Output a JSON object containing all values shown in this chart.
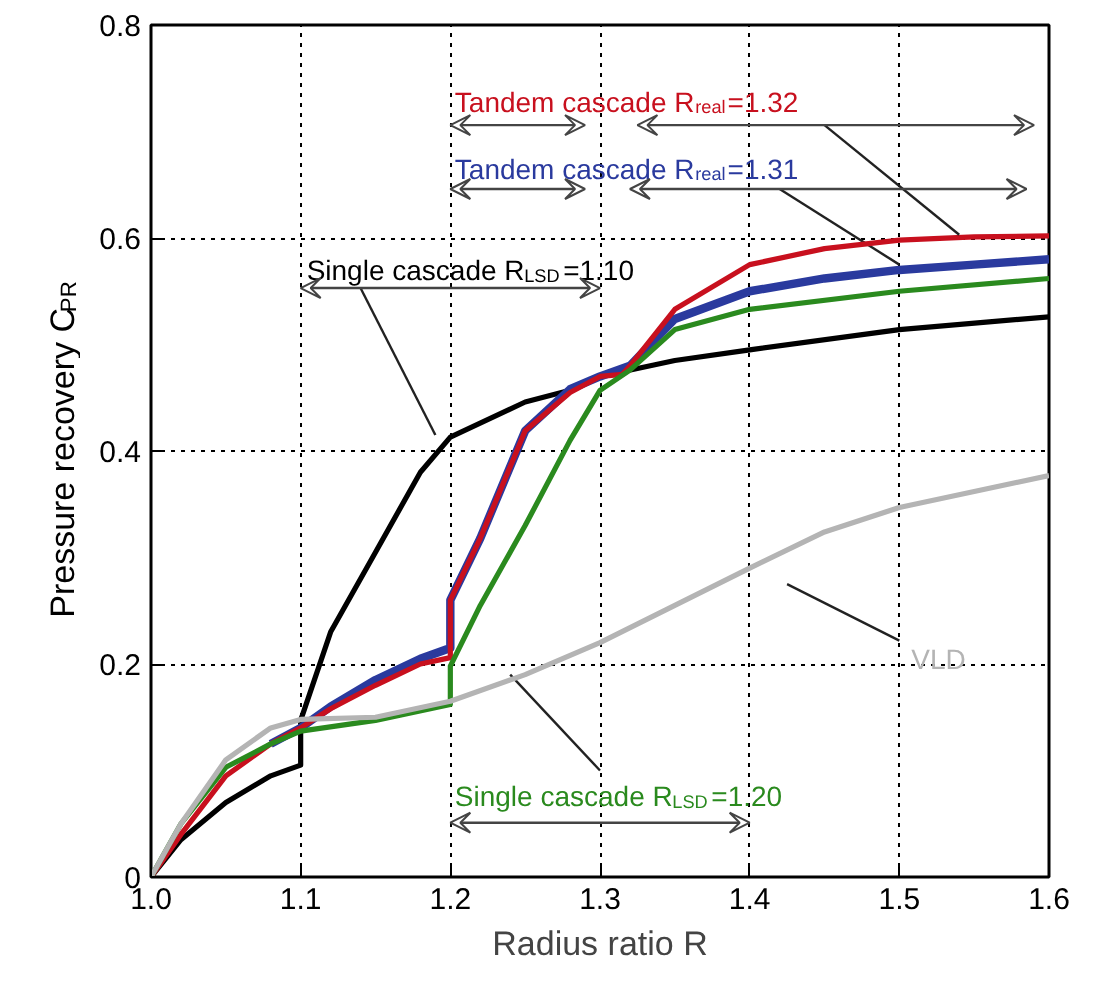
{
  "chart_data": {
    "type": "line",
    "xlabel": "Radius ratio R",
    "ylabel": "Pressure recovery C$_{PR}$",
    "xlim": [
      1.0,
      1.6
    ],
    "ylim": [
      0,
      0.8
    ],
    "xticks": [
      {
        "value": 1.0,
        "label": "1.0"
      },
      {
        "value": 1.1,
        "label": "1.1"
      },
      {
        "value": 1.2,
        "label": "1.2"
      },
      {
        "value": 1.3,
        "label": "1.3"
      },
      {
        "value": 1.4,
        "label": "1.4"
      },
      {
        "value": 1.5,
        "label": "1.5"
      },
      {
        "value": 1.6,
        "label": "1.6"
      }
    ],
    "yticks": [
      0,
      0.2,
      0.4,
      0.6,
      0.8
    ],
    "grid": true,
    "marker": "none",
    "line_style": "solid",
    "series": [
      {
        "name": "Single cascade R$_{LSD}$=1.10",
        "color": "#000000",
        "x": [
          1.0,
          1.02,
          1.05,
          1.08,
          1.1,
          1.1,
          1.12,
          1.15,
          1.18,
          1.2,
          1.25,
          1.28,
          1.3,
          1.35,
          1.4,
          1.5,
          1.6
        ],
        "values": [
          0,
          0.035,
          0.07,
          0.095,
          0.105,
          0.147,
          0.23,
          0.305,
          0.38,
          0.413,
          0.446,
          0.457,
          0.47,
          0.485,
          0.495,
          0.514,
          0.526
        ]
      },
      {
        "name": "Tandem cascade R$_{real}$=1.31",
        "color": "#2a3a9e",
        "x": [
          1.08,
          1.1,
          1.12,
          1.15,
          1.18,
          1.2,
          1.2,
          1.22,
          1.25,
          1.28,
          1.3,
          1.32,
          1.35,
          1.4,
          1.45,
          1.5,
          1.55,
          1.6
        ],
        "values": [
          0.125,
          0.14,
          0.16,
          0.185,
          0.205,
          0.215,
          0.26,
          0.318,
          0.419,
          0.458,
          0.47,
          0.48,
          0.524,
          0.55,
          0.562,
          0.57,
          0.575,
          0.58
        ]
      },
      {
        "name": "Tandem cascade R$_{real}$=1.32",
        "color": "#c8101e",
        "x": [
          1.0,
          1.02,
          1.05,
          1.08,
          1.1,
          1.12,
          1.15,
          1.18,
          1.2,
          1.2,
          1.22,
          1.25,
          1.28,
          1.3,
          1.315,
          1.32,
          1.35,
          1.4,
          1.45,
          1.5,
          1.55,
          1.6
        ],
        "values": [
          0,
          0.04,
          0.095,
          0.125,
          0.14,
          0.158,
          0.18,
          0.2,
          0.206,
          0.26,
          0.318,
          0.419,
          0.455,
          0.47,
          0.472,
          0.48,
          0.533,
          0.575,
          0.59,
          0.598,
          0.601,
          0.602
        ]
      },
      {
        "name": "Single cascade R$_{LSD}$=1.20",
        "color": "#2a8a1e",
        "x": [
          1.0,
          1.02,
          1.05,
          1.08,
          1.1,
          1.15,
          1.2,
          1.2,
          1.22,
          1.25,
          1.28,
          1.3,
          1.32,
          1.35,
          1.4,
          1.5,
          1.6
        ],
        "values": [
          0,
          0.05,
          0.103,
          0.125,
          0.137,
          0.147,
          0.162,
          0.198,
          0.255,
          0.33,
          0.41,
          0.457,
          0.476,
          0.514,
          0.533,
          0.55,
          0.562
        ]
      },
      {
        "name": "VLD",
        "color": "#b4b4b4",
        "x": [
          1.0,
          1.02,
          1.05,
          1.08,
          1.1,
          1.15,
          1.2,
          1.25,
          1.3,
          1.35,
          1.4,
          1.45,
          1.5,
          1.55,
          1.6
        ],
        "values": [
          0,
          0.05,
          0.11,
          0.14,
          0.148,
          0.15,
          0.165,
          0.19,
          0.22,
          0.255,
          0.29,
          0.324,
          0.347,
          0.362,
          0.377
        ]
      }
    ]
  }
}
